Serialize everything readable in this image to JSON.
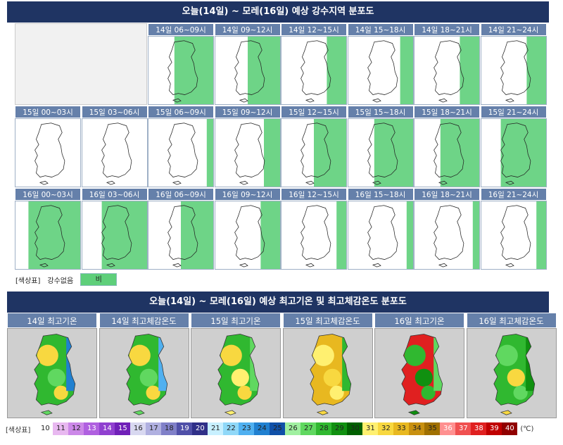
{
  "precip": {
    "title": "오늘(14일) ~ 모레(16일) 예상 강수지역 분포도",
    "rows": [
      [
        "",
        "",
        "14일 06~09시",
        "14일 09~12시",
        "14일 12~15시",
        "14일 15~18시",
        "14일 18~21시",
        "14일 21~24시"
      ],
      [
        "15일 00~03시",
        "15일 03~06시",
        "15일 06~09시",
        "15일 09~12시",
        "15일 12~15시",
        "15일 15~18시",
        "15일 18~21시",
        "15일 21~24시"
      ],
      [
        "16일 00~03시",
        "16일 03~06시",
        "16일 06~09시",
        "16일 09~12시",
        "16일 12~15시",
        "16일 15~18시",
        "16일 18~21시",
        "16일 21~24시"
      ]
    ],
    "rain_level": [
      [
        null,
        null,
        0.6,
        0.5,
        0.3,
        0.2,
        0.3,
        0.3
      ],
      [
        0.0,
        0.0,
        0.1,
        0.25,
        0.5,
        0.6,
        0.6,
        0.7
      ],
      [
        0.8,
        0.7,
        0.5,
        0.3,
        0.15,
        0.1,
        0.1,
        0.15
      ]
    ],
    "legend": {
      "label": "[색상표]",
      "none": "강수없음",
      "rain": "비",
      "rain_color": "#5ecf7a"
    }
  },
  "temp": {
    "title": "오늘(14일) ~ 모레(16일) 예상 최고기온 및 최고체감온도 분포도",
    "panels": [
      "14일 최고기온",
      "14일 최고체감온도",
      "15일 최고기온",
      "15일 최고체감온도",
      "16일 최고기온",
      "16일 최고체감온도"
    ],
    "scale_label": "[색상표]",
    "unit": "(℃)",
    "bins": [
      "10",
      "11",
      "12",
      "13",
      "14",
      "15",
      "16",
      "17",
      "18",
      "19",
      "20",
      "21",
      "22",
      "23",
      "24",
      "25",
      "26",
      "27",
      "28",
      "29",
      "30",
      "31",
      "32",
      "33",
      "34",
      "35",
      "36",
      "37",
      "38",
      "39",
      "40"
    ],
    "colors": [
      "#ffffff",
      "#e8b8f0",
      "#cc88e8",
      "#b060e0",
      "#9040d0",
      "#7020b8",
      "#d8d8f0",
      "#b0b0e0",
      "#8080c8",
      "#5050a8",
      "#303088",
      "#c8f0ff",
      "#90d8f8",
      "#50b0f0",
      "#2080d0",
      "#1050a8",
      "#a0f0a0",
      "#60d860",
      "#30b830",
      "#109010",
      "#006000",
      "#fff070",
      "#f8d840",
      "#e8b820",
      "#c89010",
      "#a07000",
      "#ff9090",
      "#f05050",
      "#e02020",
      "#c00000",
      "#900000"
    ]
  }
}
